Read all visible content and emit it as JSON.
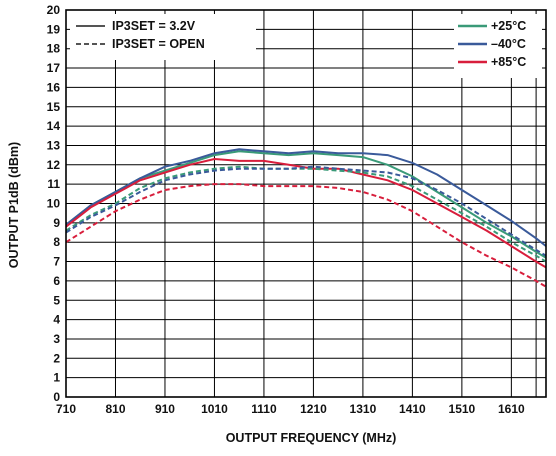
{
  "chart_data": {
    "type": "line",
    "title": "",
    "xlabel": "OUTPUT FREQUENCY (MHz)",
    "ylabel": "OUTPUT P1dB (dBm)",
    "xlim": [
      710,
      1680
    ],
    "ylim": [
      0,
      20
    ],
    "x_ticks": [
      710,
      810,
      910,
      1010,
      1110,
      1210,
      1310,
      1410,
      1510,
      1610
    ],
    "y_ticks": [
      0,
      1,
      2,
      3,
      4,
      5,
      6,
      7,
      8,
      9,
      10,
      11,
      12,
      13,
      14,
      15,
      16,
      17,
      18,
      19,
      20
    ],
    "grid": true,
    "legend_left": [
      {
        "label": "IP3SET = 3.2V",
        "style": "solid"
      },
      {
        "label": "IP3SET = OPEN",
        "style": "dashed"
      }
    ],
    "legend_right": [
      {
        "label": "+25°C",
        "color": "#3a9a78"
      },
      {
        "label": "–40°C",
        "color": "#3a5a9a"
      },
      {
        "label": "+85°C",
        "color": "#d81e3c"
      }
    ],
    "x": [
      710,
      760,
      810,
      860,
      910,
      960,
      1010,
      1060,
      1110,
      1160,
      1210,
      1260,
      1310,
      1360,
      1410,
      1460,
      1510,
      1560,
      1610,
      1660,
      1680
    ],
    "series": [
      {
        "name": "+25°C",
        "condition": "IP3SET = 3.2V",
        "color": "#3a9a78",
        "style": "solid",
        "values": [
          8.9,
          9.9,
          10.6,
          11.3,
          11.7,
          12.1,
          12.5,
          12.7,
          12.6,
          12.5,
          12.6,
          12.5,
          12.4,
          12.0,
          11.4,
          10.6,
          9.8,
          9.0,
          8.3,
          7.5,
          7.2
        ]
      },
      {
        "name": "–40°C",
        "condition": "IP3SET = 3.2V",
        "color": "#3a5a9a",
        "style": "solid",
        "values": [
          8.9,
          9.9,
          10.6,
          11.3,
          11.9,
          12.2,
          12.6,
          12.8,
          12.7,
          12.6,
          12.7,
          12.6,
          12.6,
          12.5,
          12.1,
          11.5,
          10.7,
          9.9,
          9.1,
          8.2,
          7.8
        ]
      },
      {
        "name": "+85°C",
        "condition": "IP3SET = 3.2V",
        "color": "#d81e3c",
        "style": "solid",
        "values": [
          8.8,
          9.8,
          10.5,
          11.2,
          11.6,
          12.0,
          12.3,
          12.2,
          12.2,
          12.0,
          11.8,
          11.8,
          11.5,
          11.2,
          10.7,
          10.0,
          9.3,
          8.6,
          7.8,
          7.0,
          6.7
        ]
      },
      {
        "name": "+25°C",
        "condition": "IP3SET = OPEN",
        "color": "#3a9a78",
        "style": "dashed",
        "values": [
          8.6,
          9.4,
          10.0,
          10.8,
          11.3,
          11.6,
          11.8,
          11.9,
          11.8,
          11.8,
          11.8,
          11.7,
          11.6,
          11.4,
          10.9,
          10.2,
          9.5,
          8.8,
          8.0,
          7.3,
          7.0
        ]
      },
      {
        "name": "–40°C",
        "condition": "IP3SET = OPEN",
        "color": "#3a5a9a",
        "style": "dashed",
        "values": [
          8.5,
          9.3,
          9.9,
          10.6,
          11.2,
          11.5,
          11.7,
          11.8,
          11.8,
          11.8,
          11.9,
          11.8,
          11.7,
          11.6,
          11.3,
          10.7,
          10.0,
          9.2,
          8.4,
          7.6,
          7.3
        ]
      },
      {
        "name": "+85°C",
        "condition": "IP3SET = OPEN",
        "color": "#d81e3c",
        "style": "dashed",
        "values": [
          8.0,
          8.8,
          9.6,
          10.2,
          10.7,
          10.9,
          11.0,
          11.0,
          10.9,
          10.9,
          10.9,
          10.8,
          10.6,
          10.2,
          9.6,
          8.8,
          8.0,
          7.3,
          6.7,
          6.0,
          5.7
        ]
      }
    ]
  }
}
